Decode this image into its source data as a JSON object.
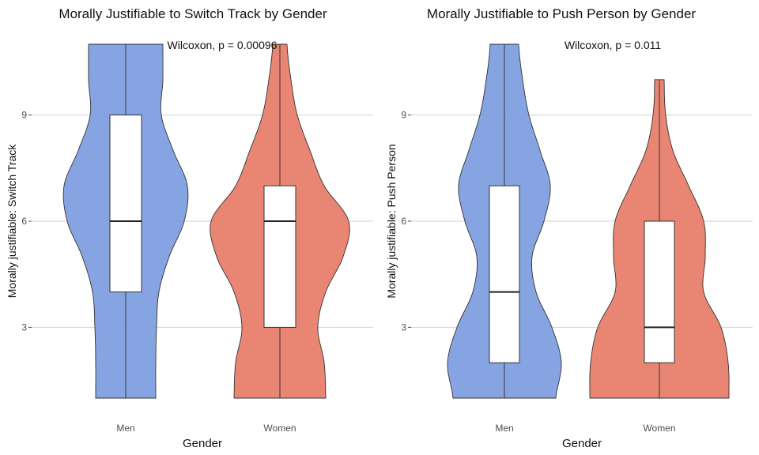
{
  "colors": {
    "Men": "#7f9fdf",
    "Women": "#e87f6b"
  },
  "chart_data": [
    {
      "type": "violin",
      "title": "Morally Justifiable to Switch Track by Gender",
      "annotation": "Wilcoxon, p = 0.00096",
      "xlabel": "Gender",
      "ylabel": "Morally justifiable: Switch Track",
      "categories": [
        "Men",
        "Women"
      ],
      "yticks": [
        3,
        6,
        9
      ],
      "ylim": [
        0.5,
        11.5
      ],
      "grid": true,
      "groups": [
        {
          "name": "Men",
          "box": {
            "q1": 4,
            "median": 6,
            "q3": 9
          },
          "whisker": [
            1,
            11
          ],
          "violin_range": [
            1,
            11
          ],
          "violin_profile": [
            [
              1,
              0.38
            ],
            [
              2,
              0.38
            ],
            [
              3,
              0.39
            ],
            [
              4,
              0.42
            ],
            [
              5,
              0.55
            ],
            [
              6,
              0.74
            ],
            [
              7,
              0.78
            ],
            [
              8,
              0.6
            ],
            [
              9,
              0.45
            ],
            [
              10,
              0.47
            ],
            [
              11,
              0.47
            ]
          ]
        },
        {
          "name": "Women",
          "box": {
            "q1": 3,
            "median": 6,
            "q3": 7
          },
          "whisker": [
            1,
            11
          ],
          "violin_range": [
            1,
            11
          ],
          "violin_profile": [
            [
              1,
              0.58
            ],
            [
              2,
              0.56
            ],
            [
              3,
              0.48
            ],
            [
              4,
              0.58
            ],
            [
              5,
              0.8
            ],
            [
              6,
              0.87
            ],
            [
              7,
              0.56
            ],
            [
              8,
              0.38
            ],
            [
              9,
              0.22
            ],
            [
              10,
              0.14
            ],
            [
              11,
              0.09
            ]
          ]
        }
      ]
    },
    {
      "type": "violin",
      "title": "Morally Justifiable to Push Person by Gender",
      "annotation": "Wilcoxon, p = 0.011",
      "xlabel": "Gender",
      "ylabel": "Morally justifiable: Push Person",
      "categories": [
        "Men",
        "Women"
      ],
      "yticks": [
        3,
        6,
        9
      ],
      "ylim": [
        0.5,
        11.5
      ],
      "grid": true,
      "groups": [
        {
          "name": "Men",
          "box": {
            "q1": 2,
            "median": 4,
            "q3": 7
          },
          "whisker": [
            1,
            11
          ],
          "violin_range": [
            1,
            11
          ],
          "violin_profile": [
            [
              1,
              0.65
            ],
            [
              2,
              0.72
            ],
            [
              3,
              0.6
            ],
            [
              4,
              0.4
            ],
            [
              5,
              0.35
            ],
            [
              6,
              0.5
            ],
            [
              7,
              0.58
            ],
            [
              8,
              0.45
            ],
            [
              9,
              0.31
            ],
            [
              10,
              0.23
            ],
            [
              11,
              0.18
            ]
          ]
        },
        {
          "name": "Women",
          "box": {
            "q1": 2,
            "median": 3,
            "q3": 6
          },
          "whisker": [
            1,
            10
          ],
          "violin_range": [
            1,
            10
          ],
          "violin_profile": [
            [
              1,
              0.88
            ],
            [
              2,
              0.87
            ],
            [
              3,
              0.78
            ],
            [
              4,
              0.56
            ],
            [
              5,
              0.58
            ],
            [
              6,
              0.56
            ],
            [
              7,
              0.37
            ],
            [
              8,
              0.17
            ],
            [
              9,
              0.08
            ],
            [
              10,
              0.06
            ]
          ]
        }
      ]
    }
  ]
}
